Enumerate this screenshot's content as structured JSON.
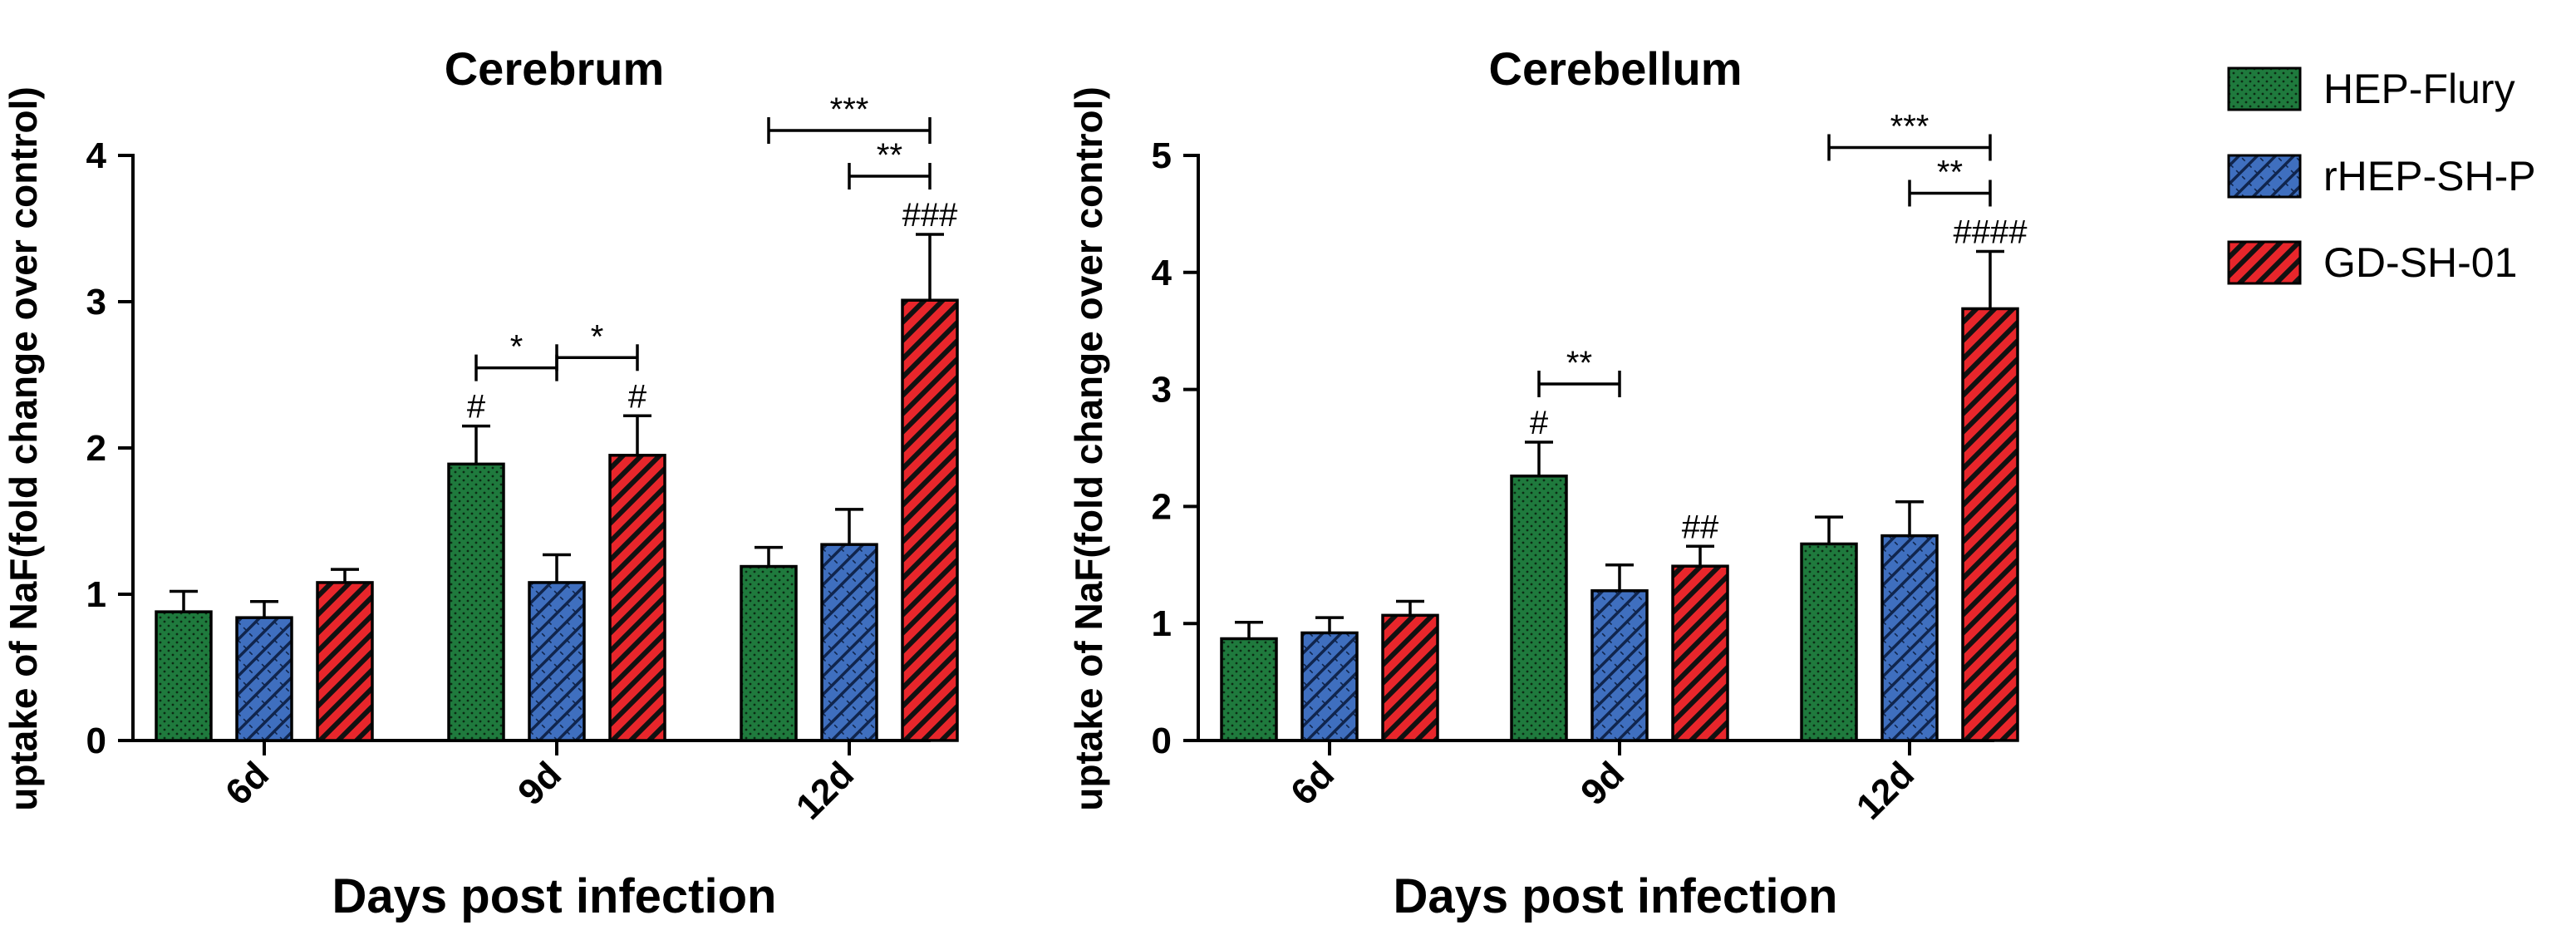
{
  "chart_data": [
    {
      "type": "bar",
      "title": "Cerebrum",
      "xlabel": "Days post infection",
      "ylabel": "uptake of NaF(fold change over control)",
      "categories": [
        "6d",
        "9d",
        "12d"
      ],
      "ylim": [
        0,
        4
      ],
      "yticks": [
        "0",
        "1",
        "2",
        "3",
        "4"
      ],
      "series": [
        {
          "name": "HEP-Flury",
          "values": [
            0.88,
            1.89,
            1.19
          ],
          "errors": [
            0.14,
            0.26,
            0.13
          ],
          "hash": [
            "",
            "#",
            ""
          ]
        },
        {
          "name": "rHEP-SH-P",
          "values": [
            0.84,
            1.08,
            1.34
          ],
          "errors": [
            0.11,
            0.19,
            0.24
          ],
          "hash": [
            "",
            "",
            ""
          ]
        },
        {
          "name": "GD-SH-01",
          "values": [
            1.08,
            1.95,
            3.01
          ],
          "errors": [
            0.09,
            0.27,
            0.45
          ],
          "hash": [
            "",
            "#",
            "###"
          ]
        }
      ],
      "brackets": [
        {
          "cat": 1,
          "from": 0,
          "to": 1,
          "label": "*"
        },
        {
          "cat": 1,
          "from": 1,
          "to": 2,
          "label": "*"
        },
        {
          "cat": 2,
          "from": 0,
          "to": 2,
          "label": "***"
        },
        {
          "cat": 2,
          "from": 1,
          "to": 2,
          "label": "**"
        }
      ]
    },
    {
      "type": "bar",
      "title": "Cerebellum",
      "xlabel": "Days post infection",
      "ylabel": "uptake of NaF(fold change over control)",
      "categories": [
        "6d",
        "9d",
        "12d"
      ],
      "ylim": [
        0,
        5
      ],
      "yticks": [
        "0",
        "1",
        "2",
        "3",
        "4",
        "5"
      ],
      "series": [
        {
          "name": "HEP-Flury",
          "values": [
            0.87,
            2.26,
            1.68
          ],
          "errors": [
            0.14,
            0.29,
            0.23
          ],
          "hash": [
            "",
            "#",
            ""
          ]
        },
        {
          "name": "rHEP-SH-P",
          "values": [
            0.92,
            1.28,
            1.75
          ],
          "errors": [
            0.13,
            0.22,
            0.29
          ],
          "hash": [
            "",
            "",
            ""
          ]
        },
        {
          "name": "GD-SH-01",
          "values": [
            1.07,
            1.49,
            3.69
          ],
          "errors": [
            0.12,
            0.17,
            0.49
          ],
          "hash": [
            "",
            "##",
            "####"
          ]
        }
      ],
      "brackets": [
        {
          "cat": 1,
          "from": 0,
          "to": 1,
          "label": "**"
        },
        {
          "cat": 2,
          "from": 0,
          "to": 2,
          "label": "***"
        },
        {
          "cat": 2,
          "from": 1,
          "to": 2,
          "label": "**"
        }
      ]
    }
  ],
  "legend": {
    "items": [
      {
        "label": "HEP-Flury",
        "color": "#1f7a3d",
        "pattern": "dots"
      },
      {
        "label": "rHEP-SH-P",
        "color": "#3f6fbf",
        "pattern": "crosshatch"
      },
      {
        "label": "GD-SH-01",
        "color": "#e8262b",
        "pattern": "stripes"
      }
    ]
  }
}
